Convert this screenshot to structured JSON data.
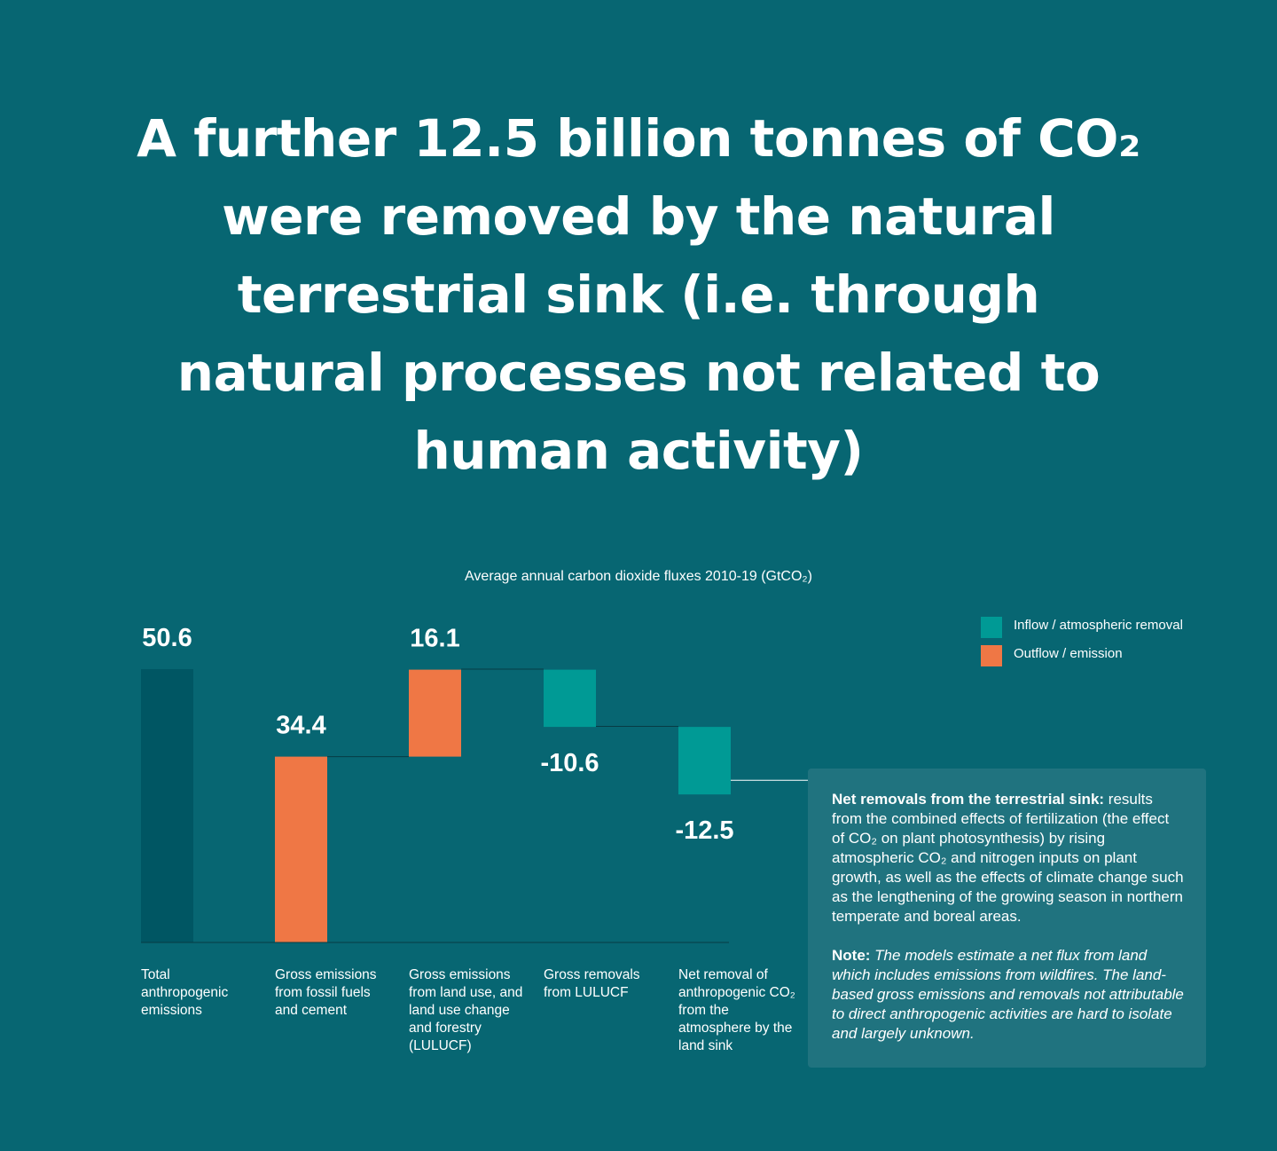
{
  "headline": "A further 12.5 billion tonnes of CO₂ were removed by the natural terrestrial sink (i.e. through natural processes not related to human activity)",
  "colors": {
    "background": "#076672",
    "total": "#005663",
    "outflow": "#ef7745",
    "inflow": "#009a95",
    "connector": "#073c44",
    "info_box": "#20737f"
  },
  "legend": {
    "inflow_label": "Inflow / atmospheric removal",
    "outflow_label": "Outflow / emission"
  },
  "info_box": {
    "heading": "Net removals from the terrestrial sink:",
    "body": " results from the combined effects of fertilization (the effect of CO₂ on plant photosynthesis) by rising atmospheric CO₂ and nitrogen inputs on plant growth, as well as the effects of climate change such as the lengthening of the growing season in northern temperate and boreal areas.",
    "note_label": "Note:",
    "note_text": " The models estimate a net flux from land which includes emissions from wildfires. The land-based gross emissions and removals not attributable to direct anthropogenic activities are hard to isolate and largely unknown."
  },
  "chart_data": {
    "type": "bar",
    "subtype": "waterfall",
    "title": "Average annual carbon dioxide fluxes 2010-19 (GtCO₂)",
    "categories": [
      "Total anthropogenic emissions",
      "Gross emissions from fossil fuels and cement",
      "Gross emissions from land use, and land use change and forestry (LULUCF)",
      "Gross removals from LULUCF",
      "Net removal of anthropogenic CO₂ from the atmosphere by the land sink"
    ],
    "values": [
      50.6,
      34.4,
      16.1,
      -10.6,
      -12.5
    ],
    "value_labels": [
      "50.6",
      "34.4",
      "16.1",
      "-10.6",
      "-12.5"
    ],
    "kinds": [
      "total",
      "outflow",
      "outflow",
      "inflow",
      "inflow"
    ],
    "ylim": [
      0,
      50.6
    ],
    "grid": false,
    "legend_position": "top-right",
    "xlabel": "",
    "ylabel": ""
  }
}
